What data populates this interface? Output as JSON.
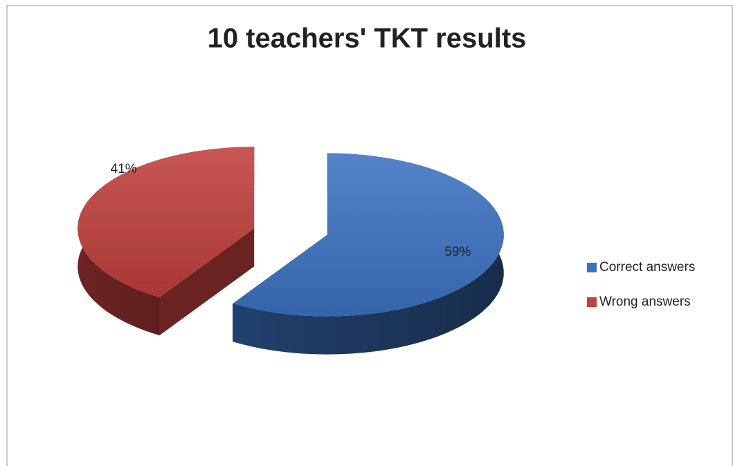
{
  "chart_data": {
    "type": "pie",
    "title": "10 teachers' TKT results",
    "categories": [
      "Correct answers",
      "Wrong answers"
    ],
    "values": [
      59,
      41
    ],
    "value_labels": [
      "59%",
      "41%"
    ],
    "colors": [
      "#3c72c2",
      "#c0403c"
    ],
    "legend": "right"
  }
}
